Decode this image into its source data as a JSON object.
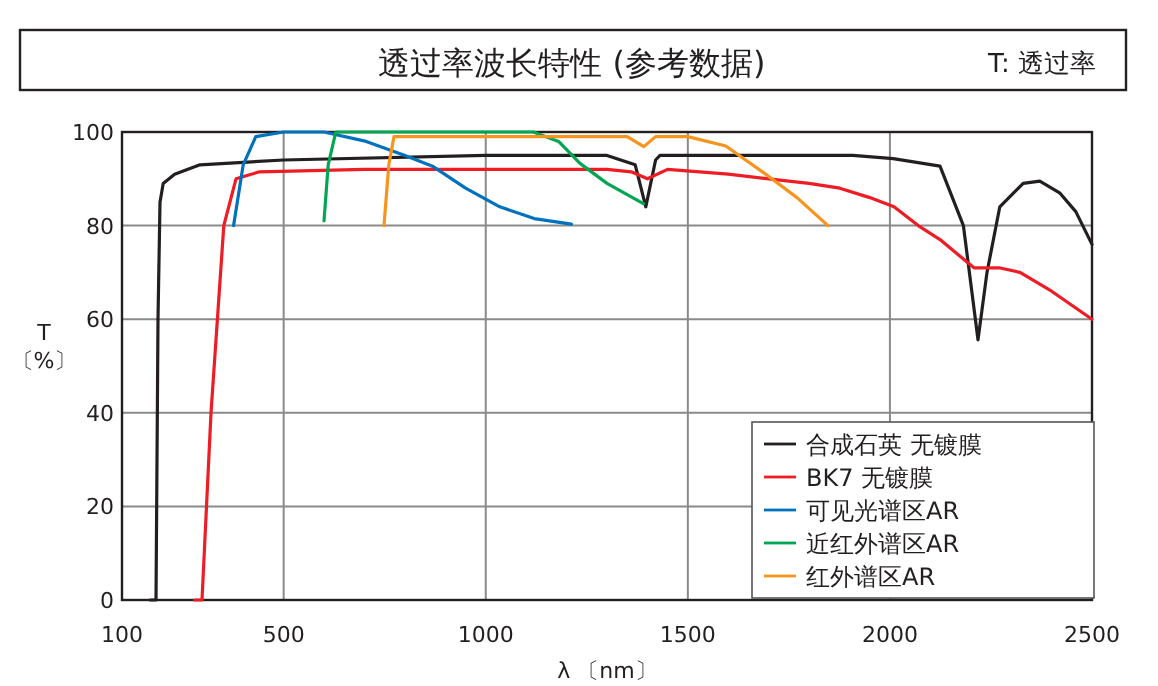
{
  "chart_data": {
    "type": "line",
    "title": "透过率波长特性 (参考数据)",
    "annotations": [
      "T: 透过率"
    ],
    "xlabel": "λ 〔nm〕",
    "ylabel": "T\n〔%〕",
    "xlim": [
      100,
      2500
    ],
    "ylim": [
      0,
      100
    ],
    "xticks": [
      100,
      500,
      1000,
      1500,
      2000,
      2500
    ],
    "yticks": [
      0,
      20,
      40,
      60,
      80,
      100
    ],
    "grid": true,
    "legend": "bottom right",
    "marker": "none",
    "line_style": "solid",
    "series": [
      {
        "name": "合成石英 无镀膜",
        "color": "#231f20",
        "x": [
          170,
          184,
          189,
          194,
          202,
          230,
          293,
          500,
          1000,
          1300,
          1370,
          1396,
          1420,
          1431,
          1600,
          1908,
          2008,
          2124,
          2182,
          2218,
          2240,
          2272,
          2330,
          2371,
          2420,
          2460,
          2500
        ],
        "values": [
          0,
          0,
          60,
          85,
          89,
          91,
          93,
          94,
          95,
          95,
          93,
          84,
          94,
          95,
          95,
          95,
          94.3,
          92.7,
          80,
          55.6,
          70,
          84,
          89,
          89.5,
          87,
          83,
          76
        ]
      },
      {
        "name": "BK7 无镀膜",
        "color": "#ee1c25",
        "x": [
          280,
          298,
          320,
          352,
          382,
          440,
          700,
          1000,
          1300,
          1360,
          1400,
          1450,
          1600,
          1800,
          1876,
          1950,
          2010,
          2070,
          2124,
          2208,
          2270,
          2322,
          2400,
          2500
        ],
        "values": [
          0,
          0,
          40,
          80,
          90,
          91.5,
          92,
          92,
          92,
          91.5,
          90,
          92,
          91,
          89,
          88,
          86,
          84,
          80,
          77,
          71,
          71,
          70,
          66,
          60
        ]
      },
      {
        "name": "可见光谱区AR",
        "color": "#0071bc",
        "x": [
          376,
          400,
          431,
          500,
          600,
          704,
          800,
          870,
          950,
          1035,
          1120,
          1212
        ],
        "values": [
          80,
          93,
          99,
          100,
          100,
          98,
          95,
          92.6,
          88,
          84,
          81.5,
          80.3
        ]
      },
      {
        "name": "近红外谱区AR",
        "color": "#00a651",
        "x": [
          600,
          610,
          629,
          700,
          900,
          1118,
          1180,
          1233,
          1300,
          1390
        ],
        "values": [
          81,
          93,
          100,
          100,
          100,
          100,
          98,
          93.3,
          89,
          84.7
        ]
      },
      {
        "name": "红外谱区AR",
        "color": "#f7941d",
        "x": [
          748,
          760,
          773,
          1000,
          1350,
          1391,
          1420,
          1500,
          1594,
          1693,
          1770,
          1847
        ],
        "values": [
          80,
          93,
          99,
          99,
          99,
          96.9,
          99,
          99,
          97,
          91,
          86,
          80
        ]
      }
    ]
  }
}
